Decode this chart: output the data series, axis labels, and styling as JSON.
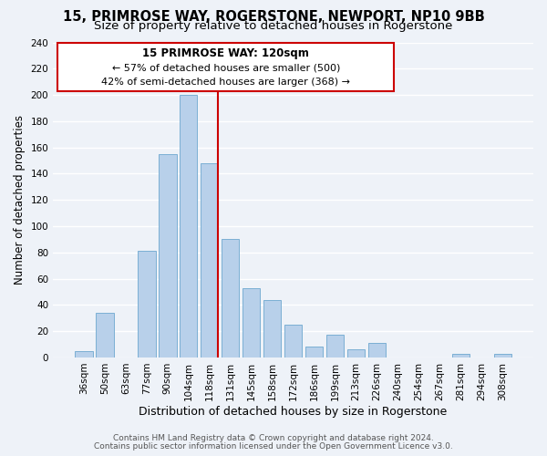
{
  "title": "15, PRIMROSE WAY, ROGERSTONE, NEWPORT, NP10 9BB",
  "subtitle": "Size of property relative to detached houses in Rogerstone",
  "xlabel": "Distribution of detached houses by size in Rogerstone",
  "ylabel": "Number of detached properties",
  "bar_labels": [
    "36sqm",
    "50sqm",
    "63sqm",
    "77sqm",
    "90sqm",
    "104sqm",
    "118sqm",
    "131sqm",
    "145sqm",
    "158sqm",
    "172sqm",
    "186sqm",
    "199sqm",
    "213sqm",
    "226sqm",
    "240sqm",
    "254sqm",
    "267sqm",
    "281sqm",
    "294sqm",
    "308sqm"
  ],
  "bar_values": [
    5,
    34,
    0,
    81,
    155,
    200,
    148,
    90,
    53,
    44,
    25,
    8,
    17,
    6,
    11,
    0,
    0,
    0,
    3,
    0,
    3
  ],
  "bar_color": "#b8d0ea",
  "bar_edge_color": "#7bafd4",
  "highlight_bar_index": 6,
  "highlight_line_color": "#cc0000",
  "ylim": [
    0,
    240
  ],
  "yticks": [
    0,
    20,
    40,
    60,
    80,
    100,
    120,
    140,
    160,
    180,
    200,
    220,
    240
  ],
  "annotation_title": "15 PRIMROSE WAY: 120sqm",
  "annotation_line1": "← 57% of detached houses are smaller (500)",
  "annotation_line2": "42% of semi-detached houses are larger (368) →",
  "annotation_box_color": "#ffffff",
  "annotation_box_edge_color": "#cc0000",
  "footer_line1": "Contains HM Land Registry data © Crown copyright and database right 2024.",
  "footer_line2": "Contains public sector information licensed under the Open Government Licence v3.0.",
  "background_color": "#eef2f8",
  "plot_bg_color": "#eef2f8",
  "grid_color": "#ffffff",
  "title_fontsize": 10.5,
  "subtitle_fontsize": 9.5,
  "ylabel_fontsize": 8.5,
  "xlabel_fontsize": 9,
  "tick_fontsize": 7.5,
  "footer_fontsize": 6.5,
  "ann_title_fontsize": 8.5,
  "ann_text_fontsize": 8
}
